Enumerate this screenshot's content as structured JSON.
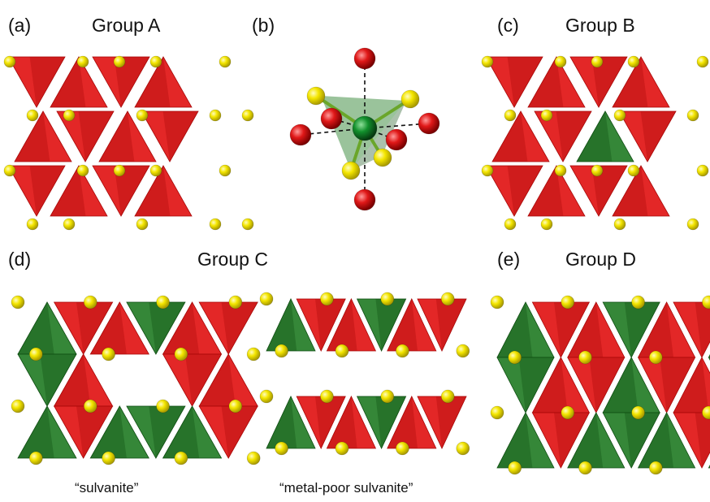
{
  "panels": [
    {
      "id": "a",
      "letter": "(a)",
      "title": "Group A",
      "composition": "red"
    },
    {
      "id": "b",
      "letter": "(b)",
      "title": "",
      "composition": "coordination"
    },
    {
      "id": "c",
      "letter": "(c)",
      "title": "Group B",
      "composition": "red-green"
    },
    {
      "id": "d",
      "letter": "(d)",
      "title": "Group C",
      "composition": "red-green"
    },
    {
      "id": "e",
      "letter": "(e)",
      "title": "Group D",
      "composition": "red-green"
    }
  ],
  "captions": {
    "left": "“sulvanite”",
    "middle": "“metal-poor sulvanite”"
  },
  "colors": {
    "red_tetra": "#e01010",
    "red_tetra_dark": "#a80808",
    "green_tetra": "#1f7a22",
    "green_tetra_dark": "#0f4d12",
    "sulfur": "#f2e500",
    "oxygen": "#d41414",
    "metal": "#0f8a2a"
  }
}
